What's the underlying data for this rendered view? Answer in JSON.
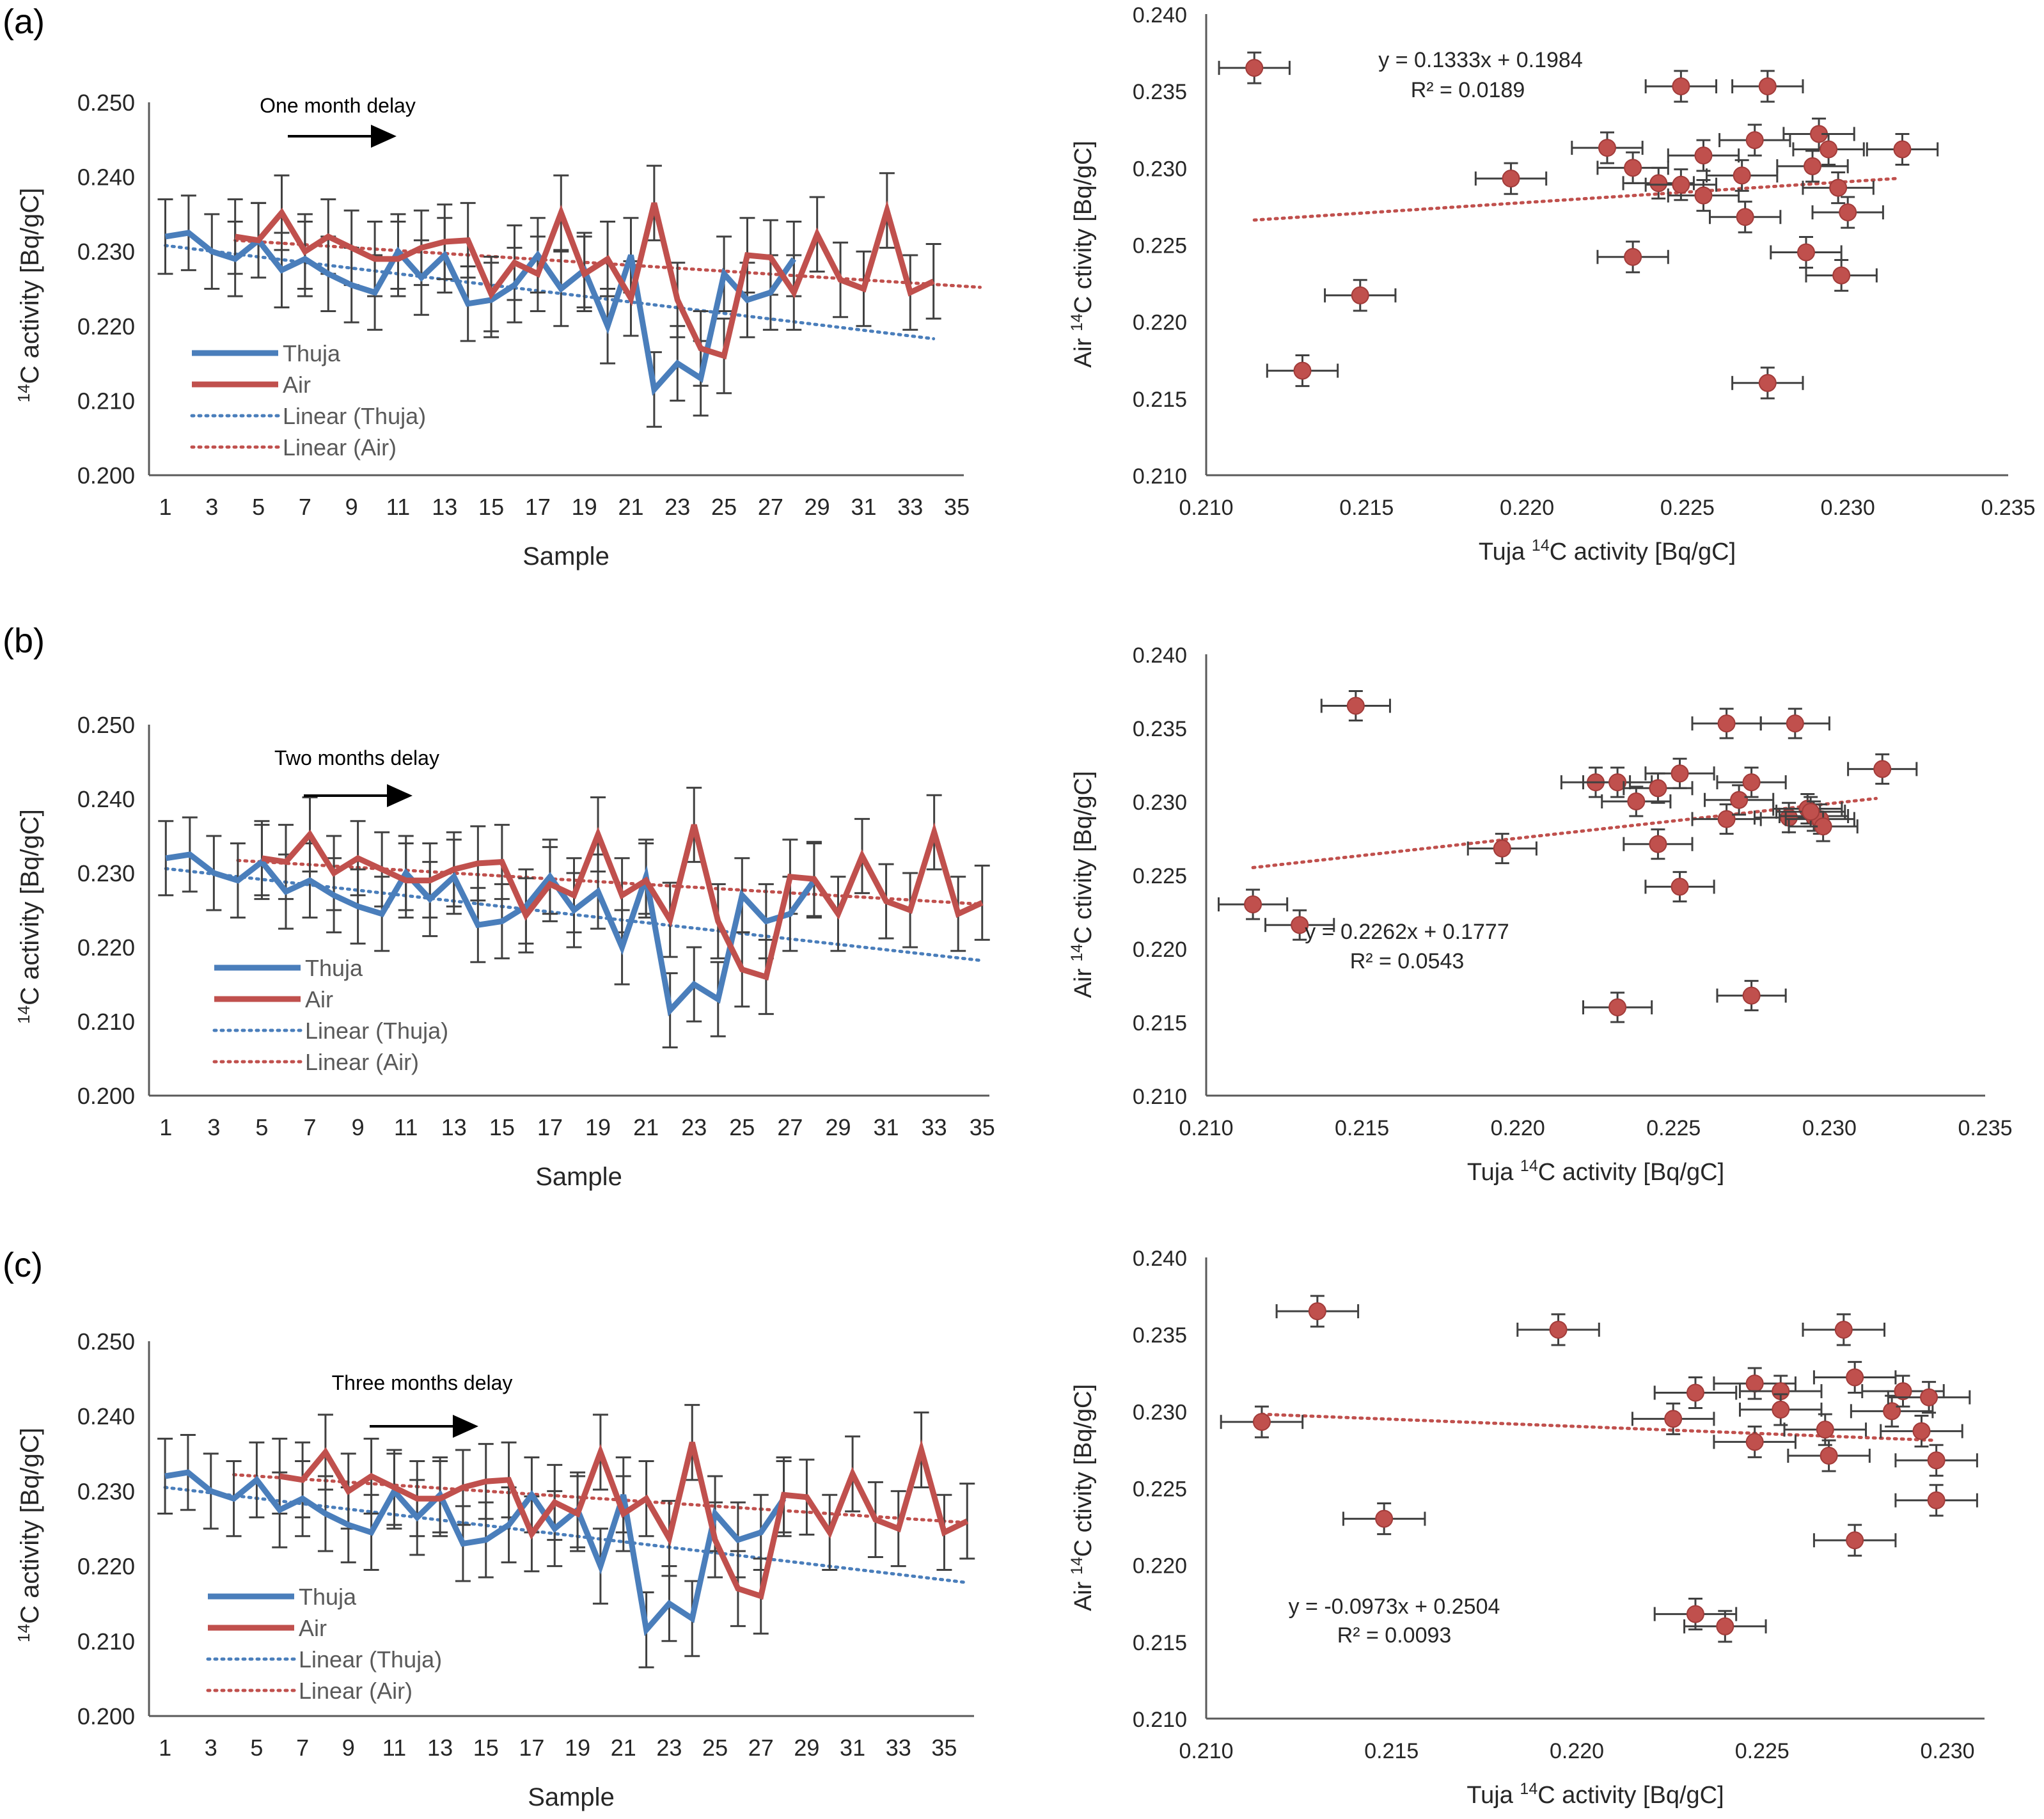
{
  "colors": {
    "thuja": "#4a7ebb",
    "air": "#c0504d",
    "errorbar": "#404040",
    "axis": "#595959",
    "text": "#262626",
    "point": "#c0504d"
  },
  "chart_data": [
    {
      "panel": "(a)",
      "type": "line",
      "ylabel": "14C activity [Bq/gC]",
      "ylabel_prefix": "14",
      "ylabel_main": "C activity [Bq/gC]",
      "xlabel": "Sample",
      "ylim": [
        0.2,
        0.25
      ],
      "yticks": [
        "0.200",
        "0.210",
        "0.220",
        "0.230",
        "0.240",
        "0.250"
      ],
      "xticks": [
        "1",
        "3",
        "5",
        "7",
        "9",
        "11",
        "13",
        "15",
        "17",
        "19",
        "21",
        "23",
        "25",
        "27",
        "29",
        "31",
        "33",
        "35"
      ],
      "annotation": "One month delay",
      "x_max": 35,
      "legend": [
        {
          "label": "Thuja"
        },
        {
          "label": "Air"
        },
        {
          "label": "Linear (Thuja)"
        },
        {
          "label": "Linear (Air)"
        }
      ],
      "series": [
        {
          "name": "Thuja",
          "x_start": 1,
          "values": [
            0.232,
            0.2325,
            0.23,
            0.229,
            0.2315,
            0.2275,
            0.229,
            0.227,
            0.2255,
            0.2245,
            0.23,
            0.2265,
            0.2295,
            0.223,
            0.2235,
            0.2255,
            0.2295,
            0.225,
            0.2275,
            0.22,
            0.2295,
            0.2115,
            0.215,
            0.213,
            0.227,
            0.2235,
            0.2245,
            0.229
          ],
          "error": 0.005
        },
        {
          "name": "Air",
          "x_start": 4,
          "values": [
            0.232,
            0.2315,
            0.2352,
            0.23,
            0.232,
            0.2305,
            0.229,
            0.229,
            0.2305,
            0.2313,
            0.2315,
            0.2243,
            0.2285,
            0.227,
            0.2352,
            0.227,
            0.229,
            0.2237,
            0.2365,
            0.2235,
            0.217,
            0.216,
            0.2295,
            0.2292,
            0.2245,
            0.2323,
            0.2262,
            0.225,
            0.2355,
            0.2245,
            0.226
          ],
          "error": 0.005
        },
        {
          "name": "Linear (Thuja)",
          "x": [
            1,
            34
          ],
          "values": [
            0.2308,
            0.2183
          ]
        },
        {
          "name": "Linear (Air)",
          "x": [
            4,
            36
          ],
          "values": [
            0.2315,
            0.2252
          ]
        }
      ]
    },
    {
      "panel": "(a)",
      "type": "scatter",
      "xlabel": "Tuja 14C activity [Bq/gC]",
      "xlabel_pre": "Tuja ",
      "xlabel_sup": "14",
      "xlabel_post": "C activity [Bq/gC]",
      "ylabel": "Air 14C ctivity [Bq/gC]",
      "ylabel_pre": "Air ",
      "ylabel_sup": "14",
      "ylabel_post": "C ctivity [Bq/gC]",
      "xlim": [
        0.21,
        0.235
      ],
      "ylim": [
        0.21,
        0.24
      ],
      "xticks": [
        "0.210",
        "0.215",
        "0.220",
        "0.225",
        "0.230",
        "0.235"
      ],
      "yticks": [
        "0.210",
        "0.215",
        "0.220",
        "0.225",
        "0.230",
        "0.235",
        "0.240"
      ],
      "equation": "y = 0.1333x + 0.1984",
      "r2": "R² = 0.0189",
      "trend": {
        "x": [
          0.2115,
          0.2315
        ],
        "y": [
          0.2266,
          0.2293
        ]
      },
      "xerr": 0.0011,
      "yerr": 0.001,
      "points": [
        {
          "x": 0.2115,
          "y": 0.2365
        },
        {
          "x": 0.213,
          "y": 0.2168
        },
        {
          "x": 0.2148,
          "y": 0.2217
        },
        {
          "x": 0.2195,
          "y": 0.2293
        },
        {
          "x": 0.2225,
          "y": 0.2313
        },
        {
          "x": 0.2233,
          "y": 0.2242
        },
        {
          "x": 0.2233,
          "y": 0.23
        },
        {
          "x": 0.2241,
          "y": 0.229
        },
        {
          "x": 0.2248,
          "y": 0.2353
        },
        {
          "x": 0.2248,
          "y": 0.2289
        },
        {
          "x": 0.2255,
          "y": 0.2308
        },
        {
          "x": 0.2255,
          "y": 0.2282
        },
        {
          "x": 0.2267,
          "y": 0.2295
        },
        {
          "x": 0.2268,
          "y": 0.2268
        },
        {
          "x": 0.2271,
          "y": 0.2318
        },
        {
          "x": 0.2275,
          "y": 0.2353
        },
        {
          "x": 0.2275,
          "y": 0.216
        },
        {
          "x": 0.2287,
          "y": 0.2245
        },
        {
          "x": 0.2289,
          "y": 0.2301
        },
        {
          "x": 0.2291,
          "y": 0.2322
        },
        {
          "x": 0.2294,
          "y": 0.2312
        },
        {
          "x": 0.2297,
          "y": 0.2287
        },
        {
          "x": 0.2298,
          "y": 0.223
        },
        {
          "x": 0.23,
          "y": 0.2271
        },
        {
          "x": 0.2317,
          "y": 0.2312
        }
      ]
    },
    {
      "panel": "(b)",
      "type": "line",
      "ylabel": "14C activity [Bq/gC]",
      "ylabel_prefix": "14",
      "ylabel_main": "C activity [Bq/gC]",
      "xlabel": "Sample",
      "ylim": [
        0.2,
        0.25
      ],
      "yticks": [
        "0.200",
        "0.210",
        "0.220",
        "0.230",
        "0.240",
        "0.250"
      ],
      "xticks": [
        "1",
        "3",
        "5",
        "7",
        "9",
        "11",
        "13",
        "15",
        "17",
        "19",
        "21",
        "23",
        "25",
        "27",
        "29",
        "31",
        "33",
        "35"
      ],
      "annotation": "Two months delay",
      "x_max": 35,
      "legend": [
        {
          "label": "Thuja"
        },
        {
          "label": "Air"
        },
        {
          "label": "Linear (Thuja)"
        },
        {
          "label": "Linear (Air)"
        }
      ],
      "series": [
        {
          "name": "Thuja",
          "x_start": 1,
          "values": [
            0.232,
            0.2325,
            0.23,
            0.229,
            0.2315,
            0.2275,
            0.229,
            0.227,
            0.2255,
            0.2245,
            0.23,
            0.2265,
            0.2295,
            0.223,
            0.2235,
            0.2255,
            0.2295,
            0.225,
            0.2275,
            0.22,
            0.2295,
            0.2115,
            0.215,
            0.213,
            0.227,
            0.2235,
            0.2245,
            0.229
          ],
          "error": 0.005
        },
        {
          "name": "Air",
          "x_start": 5,
          "values": [
            0.232,
            0.2315,
            0.2352,
            0.23,
            0.232,
            0.2305,
            0.229,
            0.229,
            0.2305,
            0.2313,
            0.2315,
            0.2243,
            0.2285,
            0.227,
            0.2352,
            0.227,
            0.229,
            0.2237,
            0.2365,
            0.2235,
            0.217,
            0.216,
            0.2295,
            0.2292,
            0.2245,
            0.2323,
            0.2262,
            0.225,
            0.2355,
            0.2245,
            0.226
          ],
          "error": 0.005
        },
        {
          "name": "Linear (Thuja)",
          "x": [
            1,
            35
          ],
          "values": [
            0.2306,
            0.2182
          ]
        },
        {
          "name": "Linear (Air)",
          "x": [
            4,
            35
          ],
          "values": [
            0.2317,
            0.2258
          ]
        }
      ]
    },
    {
      "panel": "(b)",
      "type": "scatter",
      "xlabel": "Tuja 14C activity [Bq/gC]",
      "xlabel_pre": "Tuja ",
      "xlabel_sup": "14",
      "xlabel_post": "C activity [Bq/gC]",
      "ylabel": "Air 14C ctivity [Bq/gC]",
      "ylabel_pre": "Air ",
      "ylabel_sup": "14",
      "ylabel_post": "C ctivity [Bq/gC]",
      "xlim": [
        0.21,
        0.235
      ],
      "ylim": [
        0.21,
        0.24
      ],
      "xticks": [
        "0.210",
        "0.215",
        "0.220",
        "0.225",
        "0.230",
        "0.235"
      ],
      "yticks": [
        "0.210",
        "0.215",
        "0.220",
        "0.225",
        "0.230",
        "0.235",
        "0.240"
      ],
      "equation": "y = 0.2262x + 0.1777",
      "r2": "R² = 0.0543",
      "trend": {
        "x": [
          0.2115,
          0.2315
        ],
        "y": [
          0.2255,
          0.2302
        ]
      },
      "xerr": 0.0011,
      "yerr": 0.001,
      "points": [
        {
          "x": 0.2115,
          "y": 0.223
        },
        {
          "x": 0.213,
          "y": 0.2216
        },
        {
          "x": 0.2148,
          "y": 0.2365
        },
        {
          "x": 0.2195,
          "y": 0.2268
        },
        {
          "x": 0.2225,
          "y": 0.2313
        },
        {
          "x": 0.2232,
          "y": 0.2313
        },
        {
          "x": 0.2232,
          "y": 0.216
        },
        {
          "x": 0.2238,
          "y": 0.23
        },
        {
          "x": 0.2245,
          "y": 0.2309
        },
        {
          "x": 0.2245,
          "y": 0.2271
        },
        {
          "x": 0.2252,
          "y": 0.2319
        },
        {
          "x": 0.2252,
          "y": 0.2242
        },
        {
          "x": 0.2267,
          "y": 0.2353
        },
        {
          "x": 0.2267,
          "y": 0.2288
        },
        {
          "x": 0.2271,
          "y": 0.2301
        },
        {
          "x": 0.2275,
          "y": 0.2313
        },
        {
          "x": 0.2275,
          "y": 0.2168
        },
        {
          "x": 0.2287,
          "y": 0.2289
        },
        {
          "x": 0.2289,
          "y": 0.2353
        },
        {
          "x": 0.2293,
          "y": 0.2295
        },
        {
          "x": 0.2295,
          "y": 0.229
        },
        {
          "x": 0.2297,
          "y": 0.2288
        },
        {
          "x": 0.2298,
          "y": 0.2283
        },
        {
          "x": 0.2294,
          "y": 0.2293
        },
        {
          "x": 0.2317,
          "y": 0.2322
        }
      ]
    },
    {
      "panel": "(c)",
      "type": "line",
      "ylabel": "14C activity [Bq/gC]",
      "ylabel_prefix": "14",
      "ylabel_main": "C activity [Bq/gC]",
      "xlabel": "Sample",
      "ylim": [
        0.2,
        0.25
      ],
      "yticks": [
        "0.200",
        "0.210",
        "0.220",
        "0.230",
        "0.240",
        "0.250"
      ],
      "xticks": [
        "1",
        "3",
        "5",
        "7",
        "9",
        "11",
        "13",
        "15",
        "17",
        "19",
        "21",
        "23",
        "25",
        "27",
        "29",
        "31",
        "33",
        "35"
      ],
      "annotation": "Three months delay",
      "x_max": 36,
      "legend": [
        {
          "label": "Thuja"
        },
        {
          "label": "Air"
        },
        {
          "label": "Linear (Thuja)"
        },
        {
          "label": "Linear (Air)"
        }
      ],
      "series": [
        {
          "name": "Thuja",
          "x_start": 1,
          "values": [
            0.232,
            0.2325,
            0.23,
            0.229,
            0.2315,
            0.2275,
            0.229,
            0.227,
            0.2255,
            0.2245,
            0.23,
            0.2265,
            0.2295,
            0.223,
            0.2235,
            0.2255,
            0.2295,
            0.225,
            0.2275,
            0.22,
            0.2295,
            0.2115,
            0.215,
            0.213,
            0.227,
            0.2235,
            0.2245,
            0.229
          ],
          "error": 0.005
        },
        {
          "name": "Air",
          "x_start": 6,
          "values": [
            0.232,
            0.2315,
            0.2352,
            0.23,
            0.232,
            0.2305,
            0.229,
            0.229,
            0.2305,
            0.2313,
            0.2315,
            0.2243,
            0.2285,
            0.227,
            0.2352,
            0.227,
            0.229,
            0.2237,
            0.2365,
            0.2235,
            0.217,
            0.216,
            0.2295,
            0.2292,
            0.2245,
            0.2323,
            0.2262,
            0.225,
            0.2355,
            0.2245,
            0.226
          ],
          "error": 0.005
        },
        {
          "name": "Linear (Thuja)",
          "x": [
            1,
            36
          ],
          "values": [
            0.2305,
            0.2178
          ]
        },
        {
          "name": "Linear (Air)",
          "x": [
            4,
            36
          ],
          "values": [
            0.2322,
            0.2258
          ]
        }
      ]
    },
    {
      "panel": "(c)",
      "type": "scatter",
      "xlabel": "Tuja 14C activity [Bq/gC]",
      "xlabel_pre": "Tuja ",
      "xlabel_sup": "14",
      "xlabel_post": "C activity [Bq/gC]",
      "ylabel": "Air 14C ctivity [Bq/gC]",
      "ylabel_pre": "Air ",
      "ylabel_sup": "14",
      "ylabel_post": "C ctivity [Bq/gC]",
      "xlim": [
        0.21,
        0.231
      ],
      "ylim": [
        0.21,
        0.24
      ],
      "xticks": [
        "0.210",
        "0.215",
        "0.220",
        "0.225",
        "0.230"
      ],
      "xtick_values": [
        0.21,
        0.215,
        0.22,
        0.225,
        0.23
      ],
      "yticks": [
        "0.210",
        "0.215",
        "0.220",
        "0.225",
        "0.230",
        "0.235",
        "0.240"
      ],
      "equation": "y = -0.0973x + 0.2504",
      "r2": "R² = 0.0093",
      "trend": {
        "x": [
          0.2115,
          0.2297
        ],
        "y": [
          0.2298,
          0.2281
        ]
      },
      "xerr": 0.0011,
      "yerr": 0.001,
      "points": [
        {
          "x": 0.2115,
          "y": 0.2293
        },
        {
          "x": 0.213,
          "y": 0.2365
        },
        {
          "x": 0.2148,
          "y": 0.223
        },
        {
          "x": 0.2195,
          "y": 0.2353
        },
        {
          "x": 0.2226,
          "y": 0.2295
        },
        {
          "x": 0.2232,
          "y": 0.2312
        },
        {
          "x": 0.2232,
          "y": 0.2168
        },
        {
          "x": 0.224,
          "y": 0.216
        },
        {
          "x": 0.2248,
          "y": 0.2318
        },
        {
          "x": 0.2248,
          "y": 0.228
        },
        {
          "x": 0.2255,
          "y": 0.2313
        },
        {
          "x": 0.2255,
          "y": 0.2301
        },
        {
          "x": 0.2267,
          "y": 0.2288
        },
        {
          "x": 0.2268,
          "y": 0.2271
        },
        {
          "x": 0.2272,
          "y": 0.2353
        },
        {
          "x": 0.2275,
          "y": 0.2322
        },
        {
          "x": 0.2275,
          "y": 0.2216
        },
        {
          "x": 0.2285,
          "y": 0.23
        },
        {
          "x": 0.2288,
          "y": 0.2313
        },
        {
          "x": 0.2293,
          "y": 0.2287
        },
        {
          "x": 0.2295,
          "y": 0.2309
        },
        {
          "x": 0.2297,
          "y": 0.2268
        },
        {
          "x": 0.2297,
          "y": 0.2242
        }
      ]
    }
  ]
}
